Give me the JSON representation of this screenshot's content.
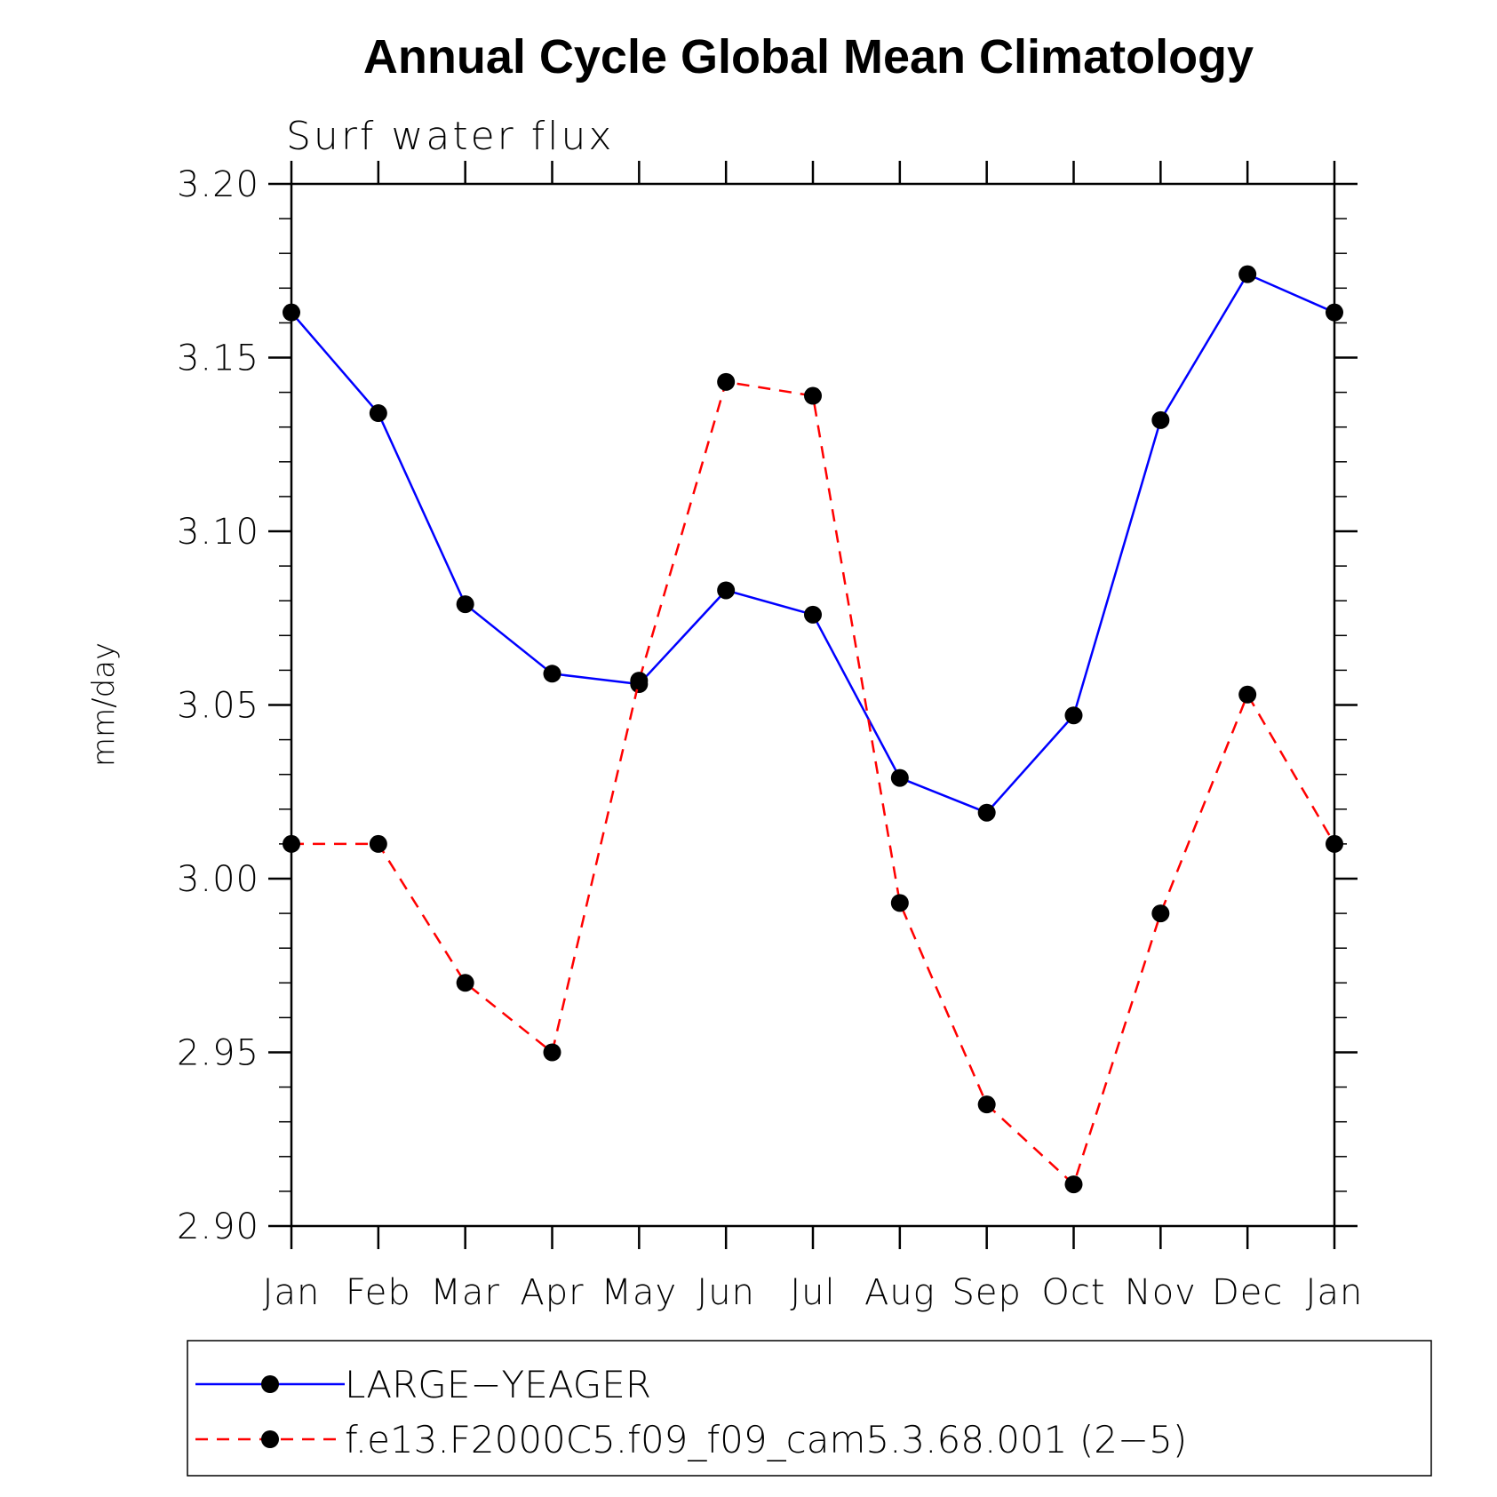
{
  "chart_data": {
    "type": "line",
    "title": "Annual Cycle Global Mean Climatology",
    "subtitle": "Surf water flux",
    "xlabel": "",
    "ylabel": "mm/day",
    "categories": [
      "Jan",
      "Feb",
      "Mar",
      "Apr",
      "May",
      "Jun",
      "Jul",
      "Aug",
      "Sep",
      "Oct",
      "Nov",
      "Dec",
      "Jan"
    ],
    "ylim": [
      2.9,
      3.2
    ],
    "yticks": [
      2.9,
      2.95,
      3.0,
      3.05,
      3.1,
      3.15,
      3.2
    ],
    "ytick_labels": [
      "2.90",
      "2.95",
      "3.00",
      "3.05",
      "3.10",
      "3.15",
      "3.20"
    ],
    "legend_position": "bottom",
    "series": [
      {
        "name": "LARGE−YEAGER",
        "color": "#0000ff",
        "style": "solid",
        "values": [
          3.163,
          3.134,
          3.079,
          3.059,
          3.056,
          3.083,
          3.076,
          3.029,
          3.019,
          3.047,
          3.132,
          3.174,
          3.163
        ]
      },
      {
        "name": "f.e13.F2000C5.f09_f09_cam5.3.68.001 (2−5)",
        "color": "#ff0000",
        "style": "dashed",
        "values": [
          3.01,
          3.01,
          2.97,
          2.95,
          3.057,
          3.143,
          3.139,
          2.993,
          2.935,
          2.912,
          2.99,
          3.053,
          3.01
        ]
      }
    ]
  }
}
